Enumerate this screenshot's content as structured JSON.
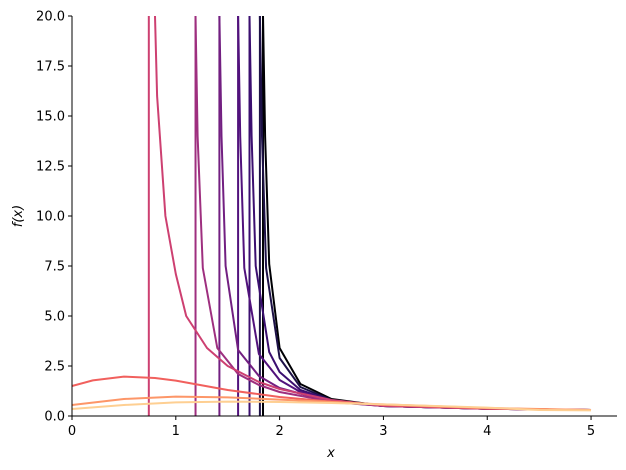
{
  "chart_data": {
    "type": "line",
    "xlabel": "x",
    "ylabel": "f(x)",
    "xlim": [
      0,
      5.25
    ],
    "ylim": [
      0,
      20
    ],
    "x_ticks": [
      0,
      1,
      2,
      3,
      4,
      5
    ],
    "y_ticks": [
      0.0,
      2.5,
      5.0,
      7.5,
      10.0,
      12.5,
      15.0,
      17.5,
      20.0
    ],
    "x_tick_labels": [
      "0",
      "1",
      "2",
      "3",
      "4",
      "5"
    ],
    "y_tick_labels": [
      "0.0",
      "2.5",
      "5.0",
      "7.5",
      "10.0",
      "12.5",
      "15.0",
      "17.5",
      "20.0"
    ],
    "grid": false,
    "legend": "none",
    "colormap": "magma",
    "series": [
      {
        "color": "#000004",
        "pole": 1.84,
        "curve": [
          [
            1.84,
            20
          ],
          [
            1.86,
            14
          ],
          [
            1.9,
            7.6
          ],
          [
            2.0,
            3.4
          ],
          [
            2.2,
            1.6
          ],
          [
            2.5,
            0.85
          ],
          [
            3.0,
            0.5
          ],
          [
            4.0,
            0.36
          ],
          [
            5.0,
            0.3
          ]
        ]
      },
      {
        "color": "#1d1147",
        "pole": 1.81,
        "curve": [
          [
            1.81,
            20
          ],
          [
            1.83,
            14
          ],
          [
            1.87,
            7.4
          ],
          [
            2.0,
            2.9
          ],
          [
            2.2,
            1.45
          ],
          [
            2.5,
            0.8
          ],
          [
            3.0,
            0.5
          ],
          [
            4.0,
            0.36
          ],
          [
            5.0,
            0.3
          ]
        ]
      },
      {
        "color": "#3b0f70",
        "pole": 1.71,
        "curve": [
          [
            1.71,
            20
          ],
          [
            1.73,
            14
          ],
          [
            1.77,
            7.5
          ],
          [
            1.9,
            3.2
          ],
          [
            2.0,
            2.2
          ],
          [
            2.2,
            1.3
          ],
          [
            2.5,
            0.78
          ],
          [
            3.0,
            0.5
          ],
          [
            4.0,
            0.36
          ],
          [
            5.0,
            0.3
          ]
        ]
      },
      {
        "color": "#51127c",
        "pole": 1.6,
        "curve": [
          [
            1.6,
            20
          ],
          [
            1.62,
            14
          ],
          [
            1.66,
            7.4
          ],
          [
            1.8,
            3.1
          ],
          [
            2.0,
            1.8
          ],
          [
            2.2,
            1.2
          ],
          [
            2.5,
            0.75
          ],
          [
            3.0,
            0.5
          ],
          [
            4.0,
            0.36
          ],
          [
            5.0,
            0.3
          ]
        ]
      },
      {
        "color": "#721f81",
        "pole": 1.42,
        "curve": [
          [
            1.42,
            20
          ],
          [
            1.44,
            14
          ],
          [
            1.48,
            7.5
          ],
          [
            1.6,
            3.3
          ],
          [
            1.8,
            2.0
          ],
          [
            2.0,
            1.4
          ],
          [
            2.5,
            0.7
          ],
          [
            3.0,
            0.5
          ],
          [
            4.0,
            0.36
          ],
          [
            5.0,
            0.3
          ]
        ]
      },
      {
        "color": "#9e2f7f",
        "pole": 1.19,
        "curve": [
          [
            1.19,
            20
          ],
          [
            1.21,
            14
          ],
          [
            1.26,
            7.4
          ],
          [
            1.4,
            3.4
          ],
          [
            1.6,
            2.1
          ],
          [
            1.8,
            1.55
          ],
          [
            2.0,
            1.2
          ],
          [
            2.5,
            0.72
          ],
          [
            3.0,
            0.5
          ],
          [
            4.0,
            0.36
          ],
          [
            5.0,
            0.3
          ]
        ]
      },
      {
        "color": "#cd4071",
        "pole": 0.74,
        "curve": [
          [
            0.8,
            20
          ],
          [
            0.82,
            16
          ],
          [
            0.9,
            10
          ],
          [
            1.0,
            7.1
          ],
          [
            1.1,
            5.0
          ],
          [
            1.3,
            3.4
          ],
          [
            1.5,
            2.5
          ],
          [
            1.8,
            1.7
          ],
          [
            2.0,
            1.35
          ],
          [
            2.5,
            0.8
          ],
          [
            3.0,
            0.52
          ],
          [
            4.0,
            0.36
          ],
          [
            5.0,
            0.3
          ]
        ]
      },
      {
        "color": "#f1605d",
        "pole": null,
        "curve": [
          [
            0,
            1.5
          ],
          [
            0.2,
            1.78
          ],
          [
            0.5,
            1.97
          ],
          [
            0.8,
            1.9
          ],
          [
            1.0,
            1.77
          ],
          [
            1.5,
            1.3
          ],
          [
            2.0,
            0.95
          ],
          [
            2.5,
            0.72
          ],
          [
            3.0,
            0.55
          ],
          [
            4.0,
            0.38
          ],
          [
            5.0,
            0.3
          ]
        ]
      },
      {
        "color": "#fd9668",
        "pole": null,
        "curve": [
          [
            0,
            0.55
          ],
          [
            0.5,
            0.85
          ],
          [
            1.0,
            0.97
          ],
          [
            1.5,
            0.93
          ],
          [
            2.0,
            0.82
          ],
          [
            2.5,
            0.7
          ],
          [
            3.0,
            0.58
          ],
          [
            4.0,
            0.4
          ],
          [
            5.0,
            0.3
          ]
        ]
      },
      {
        "color": "#fecf92",
        "pole": null,
        "curve": [
          [
            0,
            0.35
          ],
          [
            0.5,
            0.55
          ],
          [
            1.0,
            0.68
          ],
          [
            1.5,
            0.72
          ],
          [
            2.0,
            0.7
          ],
          [
            2.5,
            0.65
          ],
          [
            3.0,
            0.58
          ],
          [
            4.0,
            0.42
          ],
          [
            4.5,
            0.3
          ],
          [
            5.0,
            0.28
          ]
        ]
      }
    ]
  }
}
